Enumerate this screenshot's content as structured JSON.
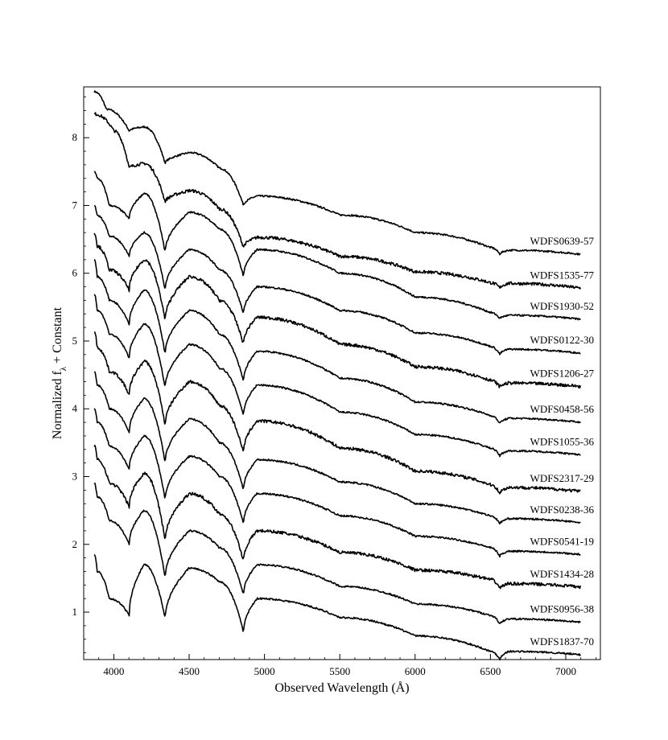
{
  "chart_data": {
    "type": "line",
    "title": "",
    "xlabel": "Observed Wavelength (Å)",
    "ylabel": "Normalized f",
    "ylabel_sub": "λ",
    "ylabel_suffix": " + Constant",
    "xlim": [
      3800,
      7230
    ],
    "ylim": [
      0.3,
      8.75
    ],
    "x_ticks": [
      4000,
      4500,
      5000,
      5500,
      6000,
      6500,
      7000
    ],
    "y_ticks": [
      1,
      2,
      3,
      4,
      5,
      6,
      7,
      8
    ],
    "grid": false,
    "legend": "none",
    "line_color": "#000000",
    "balmer_lines": [
      3889,
      3970,
      4102,
      4341,
      4861,
      6563
    ],
    "series": [
      {
        "name": "WDFS0639-57",
        "points": [
          [
            3870,
            8.68
          ],
          [
            3950,
            8.42
          ],
          [
            4102,
            8.1
          ],
          [
            4200,
            8.16
          ],
          [
            4341,
            7.62
          ],
          [
            4500,
            7.78
          ],
          [
            4700,
            7.55
          ],
          [
            4861,
            7.0
          ],
          [
            4950,
            7.14
          ],
          [
            5500,
            6.86
          ],
          [
            6000,
            6.6
          ],
          [
            6500,
            6.38
          ],
          [
            6563,
            6.28
          ],
          [
            6620,
            6.34
          ],
          [
            7100,
            6.28
          ]
        ]
      },
      {
        "name": "WDFS1535-77",
        "points": [
          [
            3870,
            8.35
          ],
          [
            4000,
            8.1
          ],
          [
            4102,
            7.55
          ],
          [
            4200,
            7.62
          ],
          [
            4341,
            7.05
          ],
          [
            4500,
            7.22
          ],
          [
            4700,
            6.95
          ],
          [
            4861,
            6.38
          ],
          [
            4950,
            6.53
          ],
          [
            5500,
            6.25
          ],
          [
            6000,
            6.02
          ],
          [
            6500,
            5.86
          ],
          [
            6563,
            5.78
          ],
          [
            6620,
            5.85
          ],
          [
            7100,
            5.78
          ]
        ]
      },
      {
        "name": "WDFS1930-52",
        "points": [
          [
            3870,
            7.5
          ],
          [
            3889,
            7.4
          ],
          [
            3970,
            7.0
          ],
          [
            4102,
            6.8
          ],
          [
            4200,
            7.18
          ],
          [
            4341,
            6.3
          ],
          [
            4500,
            6.9
          ],
          [
            4700,
            6.65
          ],
          [
            4861,
            5.95
          ],
          [
            4950,
            6.35
          ],
          [
            5500,
            6.0
          ],
          [
            6000,
            5.65
          ],
          [
            6500,
            5.42
          ],
          [
            6563,
            5.33
          ],
          [
            6620,
            5.38
          ],
          [
            7100,
            5.32
          ]
        ]
      },
      {
        "name": "WDFS0122-30",
        "points": [
          [
            3870,
            7.0
          ],
          [
            3889,
            6.85
          ],
          [
            3970,
            6.55
          ],
          [
            4102,
            6.25
          ],
          [
            4200,
            6.6
          ],
          [
            4341,
            5.75
          ],
          [
            4500,
            6.35
          ],
          [
            4700,
            6.05
          ],
          [
            4861,
            5.4
          ],
          [
            4950,
            5.8
          ],
          [
            5500,
            5.45
          ],
          [
            6000,
            5.12
          ],
          [
            6500,
            4.92
          ],
          [
            6563,
            4.8
          ],
          [
            6620,
            4.88
          ],
          [
            7100,
            4.82
          ]
        ]
      },
      {
        "name": "WDFS1206-27",
        "points": [
          [
            3870,
            6.6
          ],
          [
            3889,
            6.4
          ],
          [
            3970,
            6.05
          ],
          [
            4102,
            5.75
          ],
          [
            4200,
            6.2
          ],
          [
            4341,
            5.3
          ],
          [
            4500,
            5.95
          ],
          [
            4700,
            5.6
          ],
          [
            4861,
            4.95
          ],
          [
            4950,
            5.35
          ],
          [
            5500,
            4.95
          ],
          [
            6000,
            4.62
          ],
          [
            6500,
            4.42
          ],
          [
            6563,
            4.32
          ],
          [
            6620,
            4.38
          ],
          [
            7100,
            4.33
          ]
        ]
      },
      {
        "name": "WDFS0458-56",
        "points": [
          [
            3870,
            6.2
          ],
          [
            3889,
            5.95
          ],
          [
            3970,
            5.6
          ],
          [
            4102,
            5.25
          ],
          [
            4200,
            5.75
          ],
          [
            4341,
            4.8
          ],
          [
            4500,
            5.45
          ],
          [
            4700,
            5.1
          ],
          [
            4861,
            4.4
          ],
          [
            4950,
            4.85
          ],
          [
            5500,
            4.45
          ],
          [
            6000,
            4.1
          ],
          [
            6500,
            3.9
          ],
          [
            6563,
            3.78
          ],
          [
            6620,
            3.86
          ],
          [
            7100,
            3.8
          ]
        ]
      },
      {
        "name": "WDFS1055-36",
        "points": [
          [
            3870,
            5.7
          ],
          [
            3889,
            5.45
          ],
          [
            3970,
            5.1
          ],
          [
            4102,
            4.75
          ],
          [
            4200,
            5.25
          ],
          [
            4341,
            4.3
          ],
          [
            4500,
            4.95
          ],
          [
            4700,
            4.6
          ],
          [
            4861,
            3.9
          ],
          [
            4950,
            4.35
          ],
          [
            5500,
            3.95
          ],
          [
            6000,
            3.62
          ],
          [
            6500,
            3.42
          ],
          [
            6563,
            3.3
          ],
          [
            6620,
            3.38
          ],
          [
            7100,
            3.32
          ]
        ]
      },
      {
        "name": "WDFS2317-29",
        "points": [
          [
            3870,
            5.15
          ],
          [
            3889,
            4.9
          ],
          [
            3970,
            4.55
          ],
          [
            4102,
            4.2
          ],
          [
            4200,
            4.7
          ],
          [
            4341,
            3.75
          ],
          [
            4500,
            4.4
          ],
          [
            4700,
            4.05
          ],
          [
            4861,
            3.35
          ],
          [
            4950,
            3.82
          ],
          [
            5500,
            3.42
          ],
          [
            6000,
            3.08
          ],
          [
            6500,
            2.88
          ],
          [
            6563,
            2.75
          ],
          [
            6620,
            2.84
          ],
          [
            7100,
            2.78
          ]
        ]
      },
      {
        "name": "WDFS0238-36",
        "points": [
          [
            3870,
            4.55
          ],
          [
            3889,
            4.35
          ],
          [
            3970,
            4.0
          ],
          [
            4102,
            3.65
          ],
          [
            4200,
            4.15
          ],
          [
            4341,
            3.2
          ],
          [
            4500,
            3.85
          ],
          [
            4700,
            3.5
          ],
          [
            4861,
            2.8
          ],
          [
            4950,
            3.25
          ],
          [
            5500,
            2.92
          ],
          [
            6000,
            2.6
          ],
          [
            6500,
            2.42
          ],
          [
            6563,
            2.3
          ],
          [
            6620,
            2.38
          ],
          [
            7100,
            2.32
          ]
        ]
      },
      {
        "name": "WDFS0541-19",
        "points": [
          [
            3870,
            4.0
          ],
          [
            3889,
            3.8
          ],
          [
            3970,
            3.45
          ],
          [
            4102,
            3.1
          ],
          [
            4200,
            3.6
          ],
          [
            4341,
            2.65
          ],
          [
            4500,
            3.3
          ],
          [
            4700,
            3.0
          ],
          [
            4861,
            2.3
          ],
          [
            4950,
            2.75
          ],
          [
            5500,
            2.42
          ],
          [
            6000,
            2.12
          ],
          [
            6500,
            1.95
          ],
          [
            6563,
            1.82
          ],
          [
            6620,
            1.9
          ],
          [
            7100,
            1.85
          ]
        ]
      },
      {
        "name": "WDFS1434-28",
        "points": [
          [
            3870,
            3.45
          ],
          [
            3889,
            3.25
          ],
          [
            3970,
            2.9
          ],
          [
            4102,
            2.55
          ],
          [
            4200,
            3.05
          ],
          [
            4341,
            2.05
          ],
          [
            4500,
            2.75
          ],
          [
            4700,
            2.45
          ],
          [
            4861,
            1.75
          ],
          [
            4950,
            2.2
          ],
          [
            5500,
            1.88
          ],
          [
            6000,
            1.62
          ],
          [
            6500,
            1.48
          ],
          [
            6563,
            1.35
          ],
          [
            6620,
            1.42
          ],
          [
            7100,
            1.37
          ]
        ]
      },
      {
        "name": "WDFS0956-38",
        "points": [
          [
            3870,
            2.9
          ],
          [
            3889,
            2.7
          ],
          [
            3970,
            2.35
          ],
          [
            4102,
            2.0
          ],
          [
            4200,
            2.5
          ],
          [
            4341,
            1.5
          ],
          [
            4500,
            2.2
          ],
          [
            4700,
            1.95
          ],
          [
            4861,
            1.25
          ],
          [
            4950,
            1.7
          ],
          [
            5500,
            1.38
          ],
          [
            6000,
            1.12
          ],
          [
            6500,
            0.95
          ],
          [
            6563,
            0.82
          ],
          [
            6620,
            0.9
          ],
          [
            7100,
            0.85
          ]
        ]
      },
      {
        "name": "WDFS1837-70",
        "points": [
          [
            3870,
            1.85
          ],
          [
            3889,
            1.6
          ],
          [
            3970,
            1.2
          ],
          [
            4102,
            0.95
          ],
          [
            4200,
            1.7
          ],
          [
            4341,
            0.9
          ],
          [
            4500,
            1.65
          ],
          [
            4700,
            1.45
          ],
          [
            4861,
            0.7
          ],
          [
            4950,
            1.2
          ],
          [
            5500,
            0.92
          ],
          [
            6000,
            0.65
          ],
          [
            6500,
            0.42
          ],
          [
            6563,
            0.3
          ],
          [
            6620,
            0.42
          ],
          [
            7100,
            0.37
          ]
        ]
      }
    ]
  }
}
